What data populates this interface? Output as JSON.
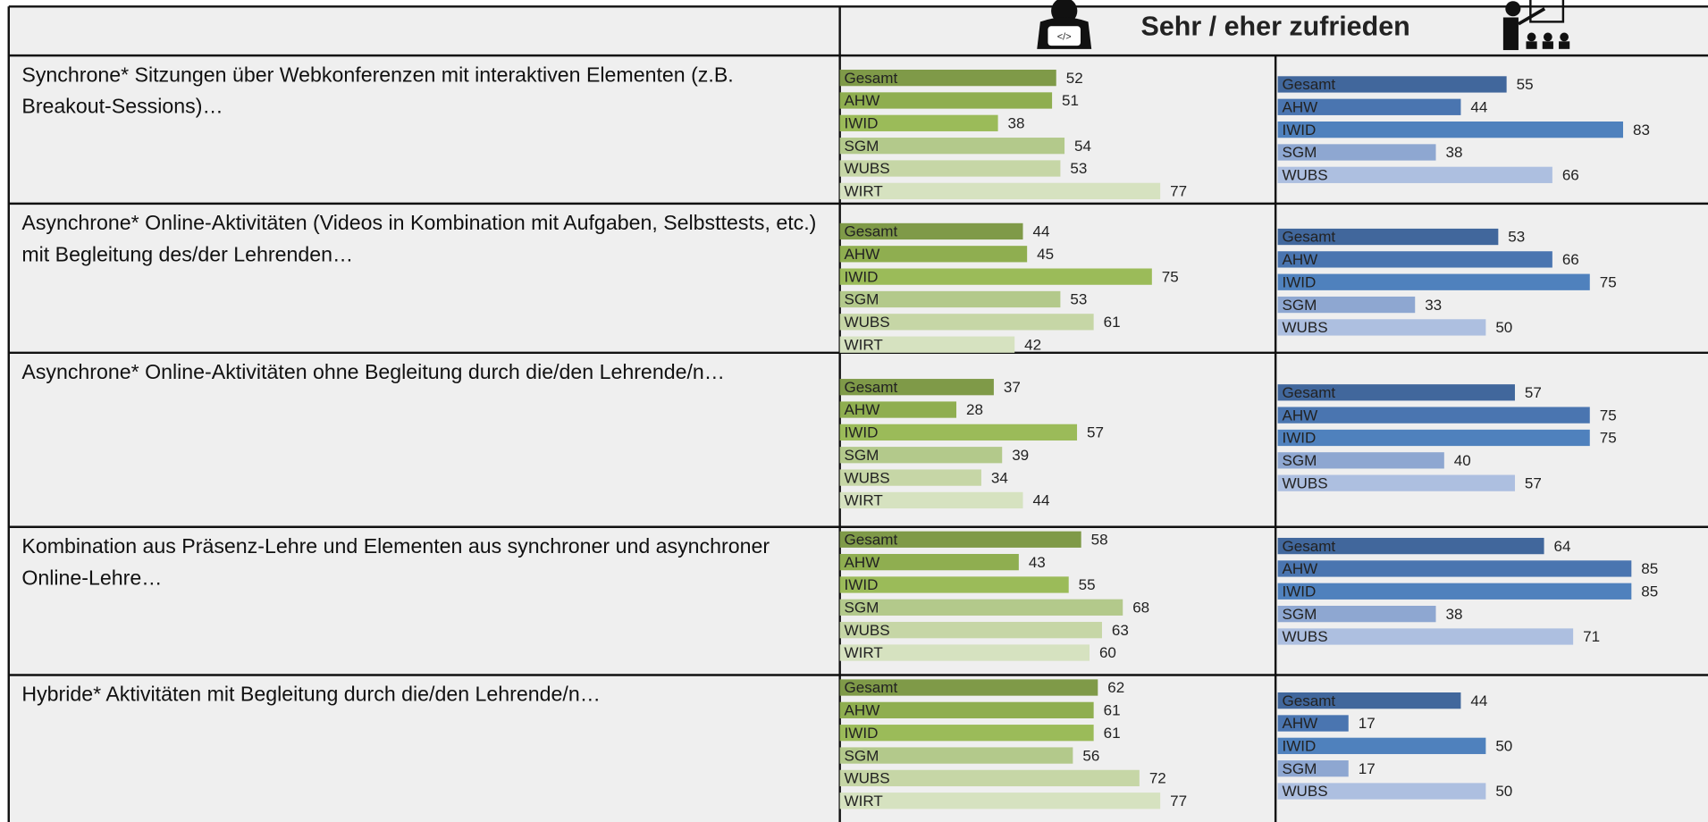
{
  "header": {
    "title": "Sehr / eher zufrieden"
  },
  "rows": [
    {
      "label": "Synchrone* Sitzungen über Webkonferenzen mit interaktiven Elementen (z.B. Breakout-Sessions)…",
      "students": [
        {
          "name": "Gesamt",
          "value": 52,
          "color": "#7f9a48"
        },
        {
          "name": "AHW",
          "value": 51,
          "color": "#8fae50"
        },
        {
          "name": "IWID",
          "value": 38,
          "color": "#9bbb59"
        },
        {
          "name": "SGM",
          "value": 54,
          "color": "#b3c98b"
        },
        {
          "name": "WUBS",
          "value": 53,
          "color": "#c6d6a6"
        },
        {
          "name": "WIRT",
          "value": 77,
          "color": "#d6e2c0"
        }
      ],
      "teachers": [
        {
          "name": "Gesamt",
          "value": 55,
          "color": "#41679c"
        },
        {
          "name": "AHW",
          "value": 44,
          "color": "#4a75b0"
        },
        {
          "name": "IWID",
          "value": 83,
          "color": "#4f81bd"
        },
        {
          "name": "SGM",
          "value": 38,
          "color": "#8ea7d1"
        },
        {
          "name": "WUBS",
          "value": 66,
          "color": "#adbfe0"
        }
      ]
    },
    {
      "label": "Asynchrone* Online-Aktivitäten (Videos in Kombination mit Aufgaben, Selbsttests, etc.) mit Begleitung des/der Lehrenden…",
      "students": [
        {
          "name": "Gesamt",
          "value": 44,
          "color": "#7f9a48"
        },
        {
          "name": "AHW",
          "value": 45,
          "color": "#8fae50"
        },
        {
          "name": "IWID",
          "value": 75,
          "color": "#9bbb59"
        },
        {
          "name": "SGM",
          "value": 53,
          "color": "#b3c98b"
        },
        {
          "name": "WUBS",
          "value": 61,
          "color": "#c6d6a6"
        },
        {
          "name": "WIRT",
          "value": 42,
          "color": "#d6e2c0"
        }
      ],
      "teachers": [
        {
          "name": "Gesamt",
          "value": 53,
          "color": "#41679c"
        },
        {
          "name": "AHW",
          "value": 66,
          "color": "#4a75b0"
        },
        {
          "name": "IWID",
          "value": 75,
          "color": "#4f81bd"
        },
        {
          "name": "SGM",
          "value": 33,
          "color": "#8ea7d1"
        },
        {
          "name": "WUBS",
          "value": 50,
          "color": "#adbfe0"
        }
      ]
    },
    {
      "label": "Asynchrone* Online-Aktivitäten ohne Begleitung durch die/den Lehrende/n…",
      "students": [
        {
          "name": "Gesamt",
          "value": 37,
          "color": "#7f9a48"
        },
        {
          "name": "AHW",
          "value": 28,
          "color": "#8fae50"
        },
        {
          "name": "IWID",
          "value": 57,
          "color": "#9bbb59"
        },
        {
          "name": "SGM",
          "value": 39,
          "color": "#b3c98b"
        },
        {
          "name": "WUBS",
          "value": 34,
          "color": "#c6d6a6"
        },
        {
          "name": "WIRT",
          "value": 44,
          "color": "#d6e2c0"
        }
      ],
      "teachers": [
        {
          "name": "Gesamt",
          "value": 57,
          "color": "#41679c"
        },
        {
          "name": "AHW",
          "value": 75,
          "color": "#4a75b0"
        },
        {
          "name": "IWID",
          "value": 75,
          "color": "#4f81bd"
        },
        {
          "name": "SGM",
          "value": 40,
          "color": "#8ea7d1"
        },
        {
          "name": "WUBS",
          "value": 57,
          "color": "#adbfe0"
        }
      ]
    },
    {
      "label": "Kombination aus Präsenz-Lehre und Elementen aus synchroner und asynchroner Online-Lehre…",
      "students": [
        {
          "name": "Gesamt",
          "value": 58,
          "color": "#7f9a48"
        },
        {
          "name": "AHW",
          "value": 43,
          "color": "#8fae50"
        },
        {
          "name": "IWID",
          "value": 55,
          "color": "#9bbb59"
        },
        {
          "name": "SGM",
          "value": 68,
          "color": "#b3c98b"
        },
        {
          "name": "WUBS",
          "value": 63,
          "color": "#c6d6a6"
        },
        {
          "name": "WIRT",
          "value": 60,
          "color": "#d6e2c0"
        }
      ],
      "teachers": [
        {
          "name": "Gesamt",
          "value": 64,
          "color": "#41679c"
        },
        {
          "name": "AHW",
          "value": 85,
          "color": "#4a75b0"
        },
        {
          "name": "IWID",
          "value": 85,
          "color": "#4f81bd"
        },
        {
          "name": "SGM",
          "value": 38,
          "color": "#8ea7d1"
        },
        {
          "name": "WUBS",
          "value": 71,
          "color": "#adbfe0"
        }
      ]
    },
    {
      "label": "Hybride* Aktivitäten mit Begleitung durch die/den Lehrende/n…",
      "students": [
        {
          "name": "Gesamt",
          "value": 62,
          "color": "#7f9a48"
        },
        {
          "name": "AHW",
          "value": 61,
          "color": "#8fae50"
        },
        {
          "name": "IWID",
          "value": 61,
          "color": "#9bbb59"
        },
        {
          "name": "SGM",
          "value": 56,
          "color": "#b3c98b"
        },
        {
          "name": "WUBS",
          "value": 72,
          "color": "#c6d6a6"
        },
        {
          "name": "WIRT",
          "value": 77,
          "color": "#d6e2c0"
        }
      ],
      "teachers": [
        {
          "name": "Gesamt",
          "value": 44,
          "color": "#41679c"
        },
        {
          "name": "AHW",
          "value": 17,
          "color": "#4a75b0"
        },
        {
          "name": "IWID",
          "value": 50,
          "color": "#4f81bd"
        },
        {
          "name": "SGM",
          "value": 17,
          "color": "#8ea7d1"
        },
        {
          "name": "WUBS",
          "value": 50,
          "color": "#adbfe0"
        }
      ]
    }
  ]
}
